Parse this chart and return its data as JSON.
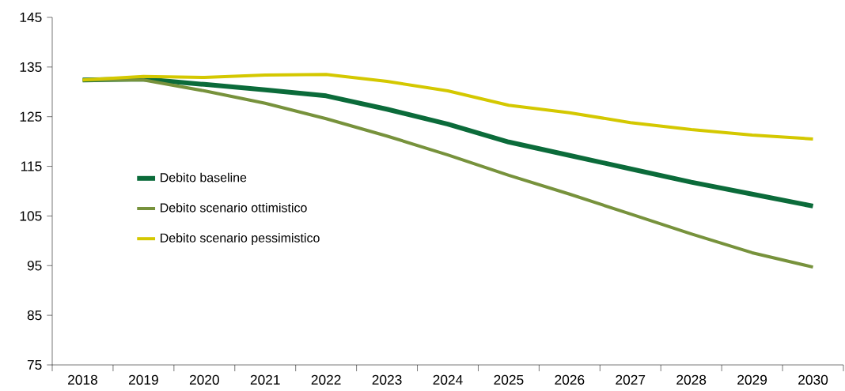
{
  "chart_data": {
    "type": "line",
    "categories": [
      "2018",
      "2019",
      "2020",
      "2021",
      "2022",
      "2023",
      "2024",
      "2025",
      "2026",
      "2027",
      "2028",
      "2029",
      "2030"
    ],
    "series": [
      {
        "name": "Debito baseline",
        "color": "#0b6b3a",
        "values": [
          132.4,
          132.6,
          131.5,
          130.4,
          129.2,
          126.5,
          123.5,
          119.9,
          117.2,
          114.5,
          111.8,
          109.4,
          107.0
        ]
      },
      {
        "name": "Debito scenario ottimistico",
        "color": "#77923c",
        "values": [
          132.4,
          132.4,
          130.2,
          127.7,
          124.6,
          121.1,
          117.3,
          113.2,
          109.4,
          105.4,
          101.4,
          97.6,
          94.7
        ]
      },
      {
        "name": "Debito scenario pessimistico",
        "color": "#d4c800",
        "values": [
          132.4,
          133.1,
          132.9,
          133.4,
          133.5,
          132.1,
          130.2,
          127.3,
          125.8,
          123.8,
          122.4,
          121.3,
          120.5
        ]
      }
    ],
    "ylim": [
      75,
      145
    ],
    "yticks": [
      75,
      85,
      95,
      105,
      115,
      125,
      135,
      145
    ],
    "grid": false,
    "legend": "left",
    "marker": "none",
    "line_style": "solid"
  }
}
